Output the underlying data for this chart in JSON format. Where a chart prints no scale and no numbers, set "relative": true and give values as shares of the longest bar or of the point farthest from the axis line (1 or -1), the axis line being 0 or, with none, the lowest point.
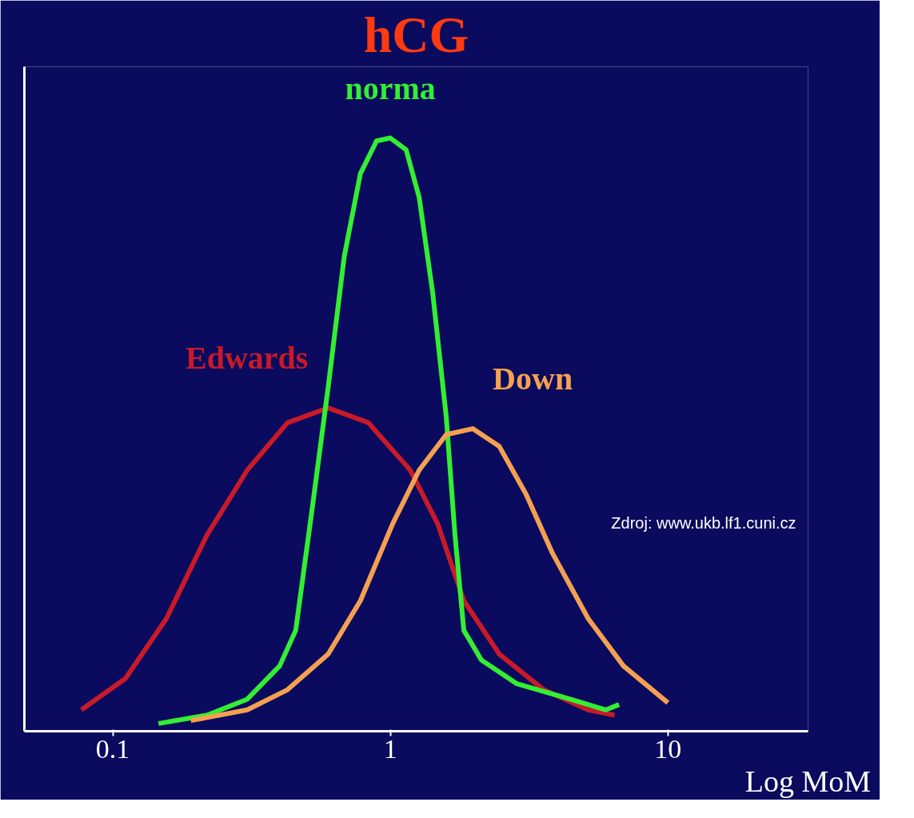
{
  "chart_data": {
    "type": "line",
    "title": "hCG",
    "xlabel": "Log MoM",
    "log": "x",
    "relative": true,
    "xlim": [
      0.048,
      32
    ],
    "xticks": [
      0.1,
      1,
      10
    ],
    "grid": false,
    "marker": "none",
    "line_style": "solid",
    "annotations": [
      "Zdroj: www.ukb.lf1.cuni.cz"
    ],
    "series": [
      {
        "name": "Edwards",
        "color": "#c81a28",
        "x": [
          0.077,
          0.111,
          0.156,
          0.218,
          0.305,
          0.426,
          0.597,
          0.834,
          1.18,
          1.48,
          1.84,
          2.47,
          3.57,
          5.16,
          6.43
        ],
        "values": [
          0.036,
          0.089,
          0.19,
          0.33,
          0.44,
          0.52,
          0.545,
          0.52,
          0.44,
          0.35,
          0.22,
          0.13,
          0.07,
          0.036,
          0.027
        ]
      },
      {
        "name": "norma",
        "color": "#33ee33",
        "x": [
          0.146,
          0.218,
          0.305,
          0.399,
          0.456,
          0.521,
          0.597,
          0.682,
          0.78,
          0.892,
          1,
          1.14,
          1.27,
          1.42,
          1.59,
          1.71,
          1.84,
          2.13,
          2.86,
          4.45,
          5.98,
          6.67
        ],
        "values": [
          0.013,
          0.027,
          0.054,
          0.11,
          0.17,
          0.37,
          0.58,
          0.8,
          0.94,
          0.995,
          1,
          0.98,
          0.9,
          0.74,
          0.53,
          0.33,
          0.17,
          0.12,
          0.08,
          0.054,
          0.036,
          0.045
        ]
      },
      {
        "name": "Down",
        "color": "#f5a050",
        "x": [
          0.191,
          0.305,
          0.426,
          0.597,
          0.78,
          1.02,
          1.27,
          1.59,
          1.98,
          2.47,
          3.08,
          3.84,
          5.16,
          6.92,
          10
        ],
        "values": [
          0.018,
          0.036,
          0.07,
          0.13,
          0.22,
          0.35,
          0.44,
          0.5,
          0.51,
          0.48,
          0.4,
          0.3,
          0.19,
          0.11,
          0.048
        ]
      }
    ]
  }
}
